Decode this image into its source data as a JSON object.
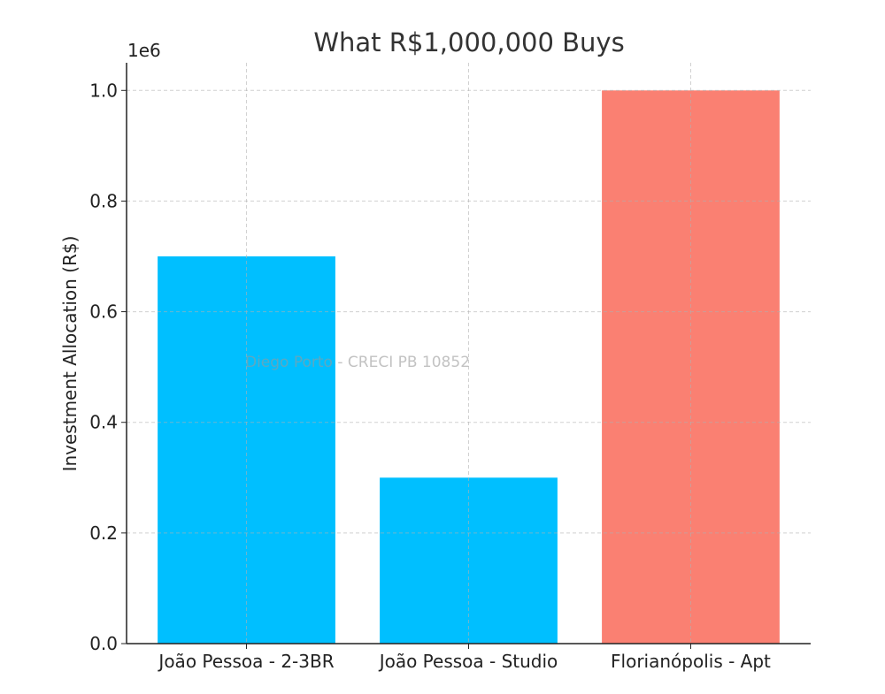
{
  "chart_data": {
    "type": "bar",
    "title": "What R$1,000,000 Buys",
    "xlabel": "",
    "ylabel": "Investment Allocation (R$)",
    "y_offset_label": "1e6",
    "categories": [
      "João Pessoa - 2-3BR",
      "João Pessoa - Studio",
      "Florianópolis - Apt"
    ],
    "values": [
      700000,
      300000,
      1000000
    ],
    "colors": [
      "#00BFFF",
      "#00BFFF",
      "#FA8072"
    ],
    "ylim": [
      0,
      1050000
    ],
    "yticks": [
      0,
      200000,
      400000,
      600000,
      800000,
      1000000
    ],
    "ytick_labels": [
      "0.0",
      "0.2",
      "0.4",
      "0.6",
      "0.8",
      "1.0"
    ],
    "grid": true,
    "watermark": "Diego Porto - CRECI PB 10852"
  }
}
